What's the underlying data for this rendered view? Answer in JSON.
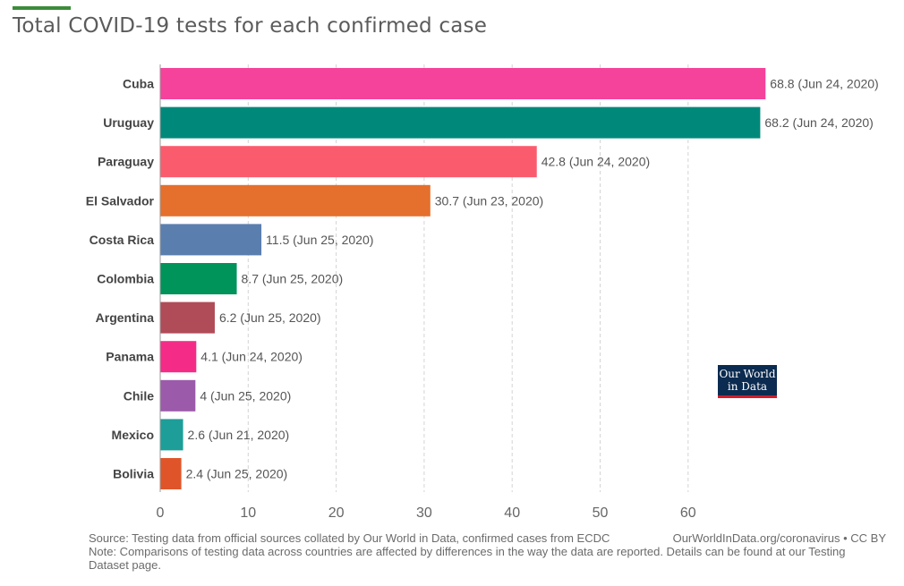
{
  "header": {
    "title": "Total COVID-19 tests for each confirmed case",
    "accent_color": "#3c8c3a"
  },
  "chart_data": {
    "type": "bar",
    "orientation": "horizontal",
    "title": "Total COVID-19 tests for each confirmed case",
    "xlabel": "",
    "ylabel": "",
    "xlim": [
      0,
      70
    ],
    "xticks": [
      0,
      10,
      20,
      30,
      40,
      50,
      60
    ],
    "grid": true,
    "categories": [
      "Cuba",
      "Uruguay",
      "Paraguay",
      "El Salvador",
      "Costa Rica",
      "Colombia",
      "Argentina",
      "Panama",
      "Chile",
      "Mexico",
      "Bolivia"
    ],
    "values": [
      68.8,
      68.2,
      42.8,
      30.7,
      11.5,
      8.7,
      6.2,
      4.1,
      4,
      2.6,
      2.4
    ],
    "value_labels": [
      "68.8 (Jun 24, 2020)",
      "68.2 (Jun 24, 2020)",
      "42.8 (Jun 24, 2020)",
      "30.7 (Jun 23, 2020)",
      "11.5 (Jun 25, 2020)",
      "8.7 (Jun 25, 2020)",
      "6.2 (Jun 25, 2020)",
      "4.1 (Jun 24, 2020)",
      "4 (Jun 25, 2020)",
      "2.6 (Jun 21, 2020)",
      "2.4 (Jun 25, 2020)"
    ],
    "colors": [
      "#f5429b",
      "#00897b",
      "#fa5c6e",
      "#e56f2c",
      "#5a7fae",
      "#00935a",
      "#b04b58",
      "#f52c87",
      "#9b5aaa",
      "#1d9e99",
      "#df5529"
    ]
  },
  "logo": {
    "line1": "Our World",
    "line2": "in Data"
  },
  "footer": {
    "source": "Source: Testing data from official sources collated by Our World in Data, confirmed cases from ECDC",
    "credit": "OurWorldInData.org/coronavirus • CC BY",
    "note": "Note: Comparisons of testing data across countries are affected by differences in the way the data are reported. Details can be found at our Testing Dataset page."
  }
}
